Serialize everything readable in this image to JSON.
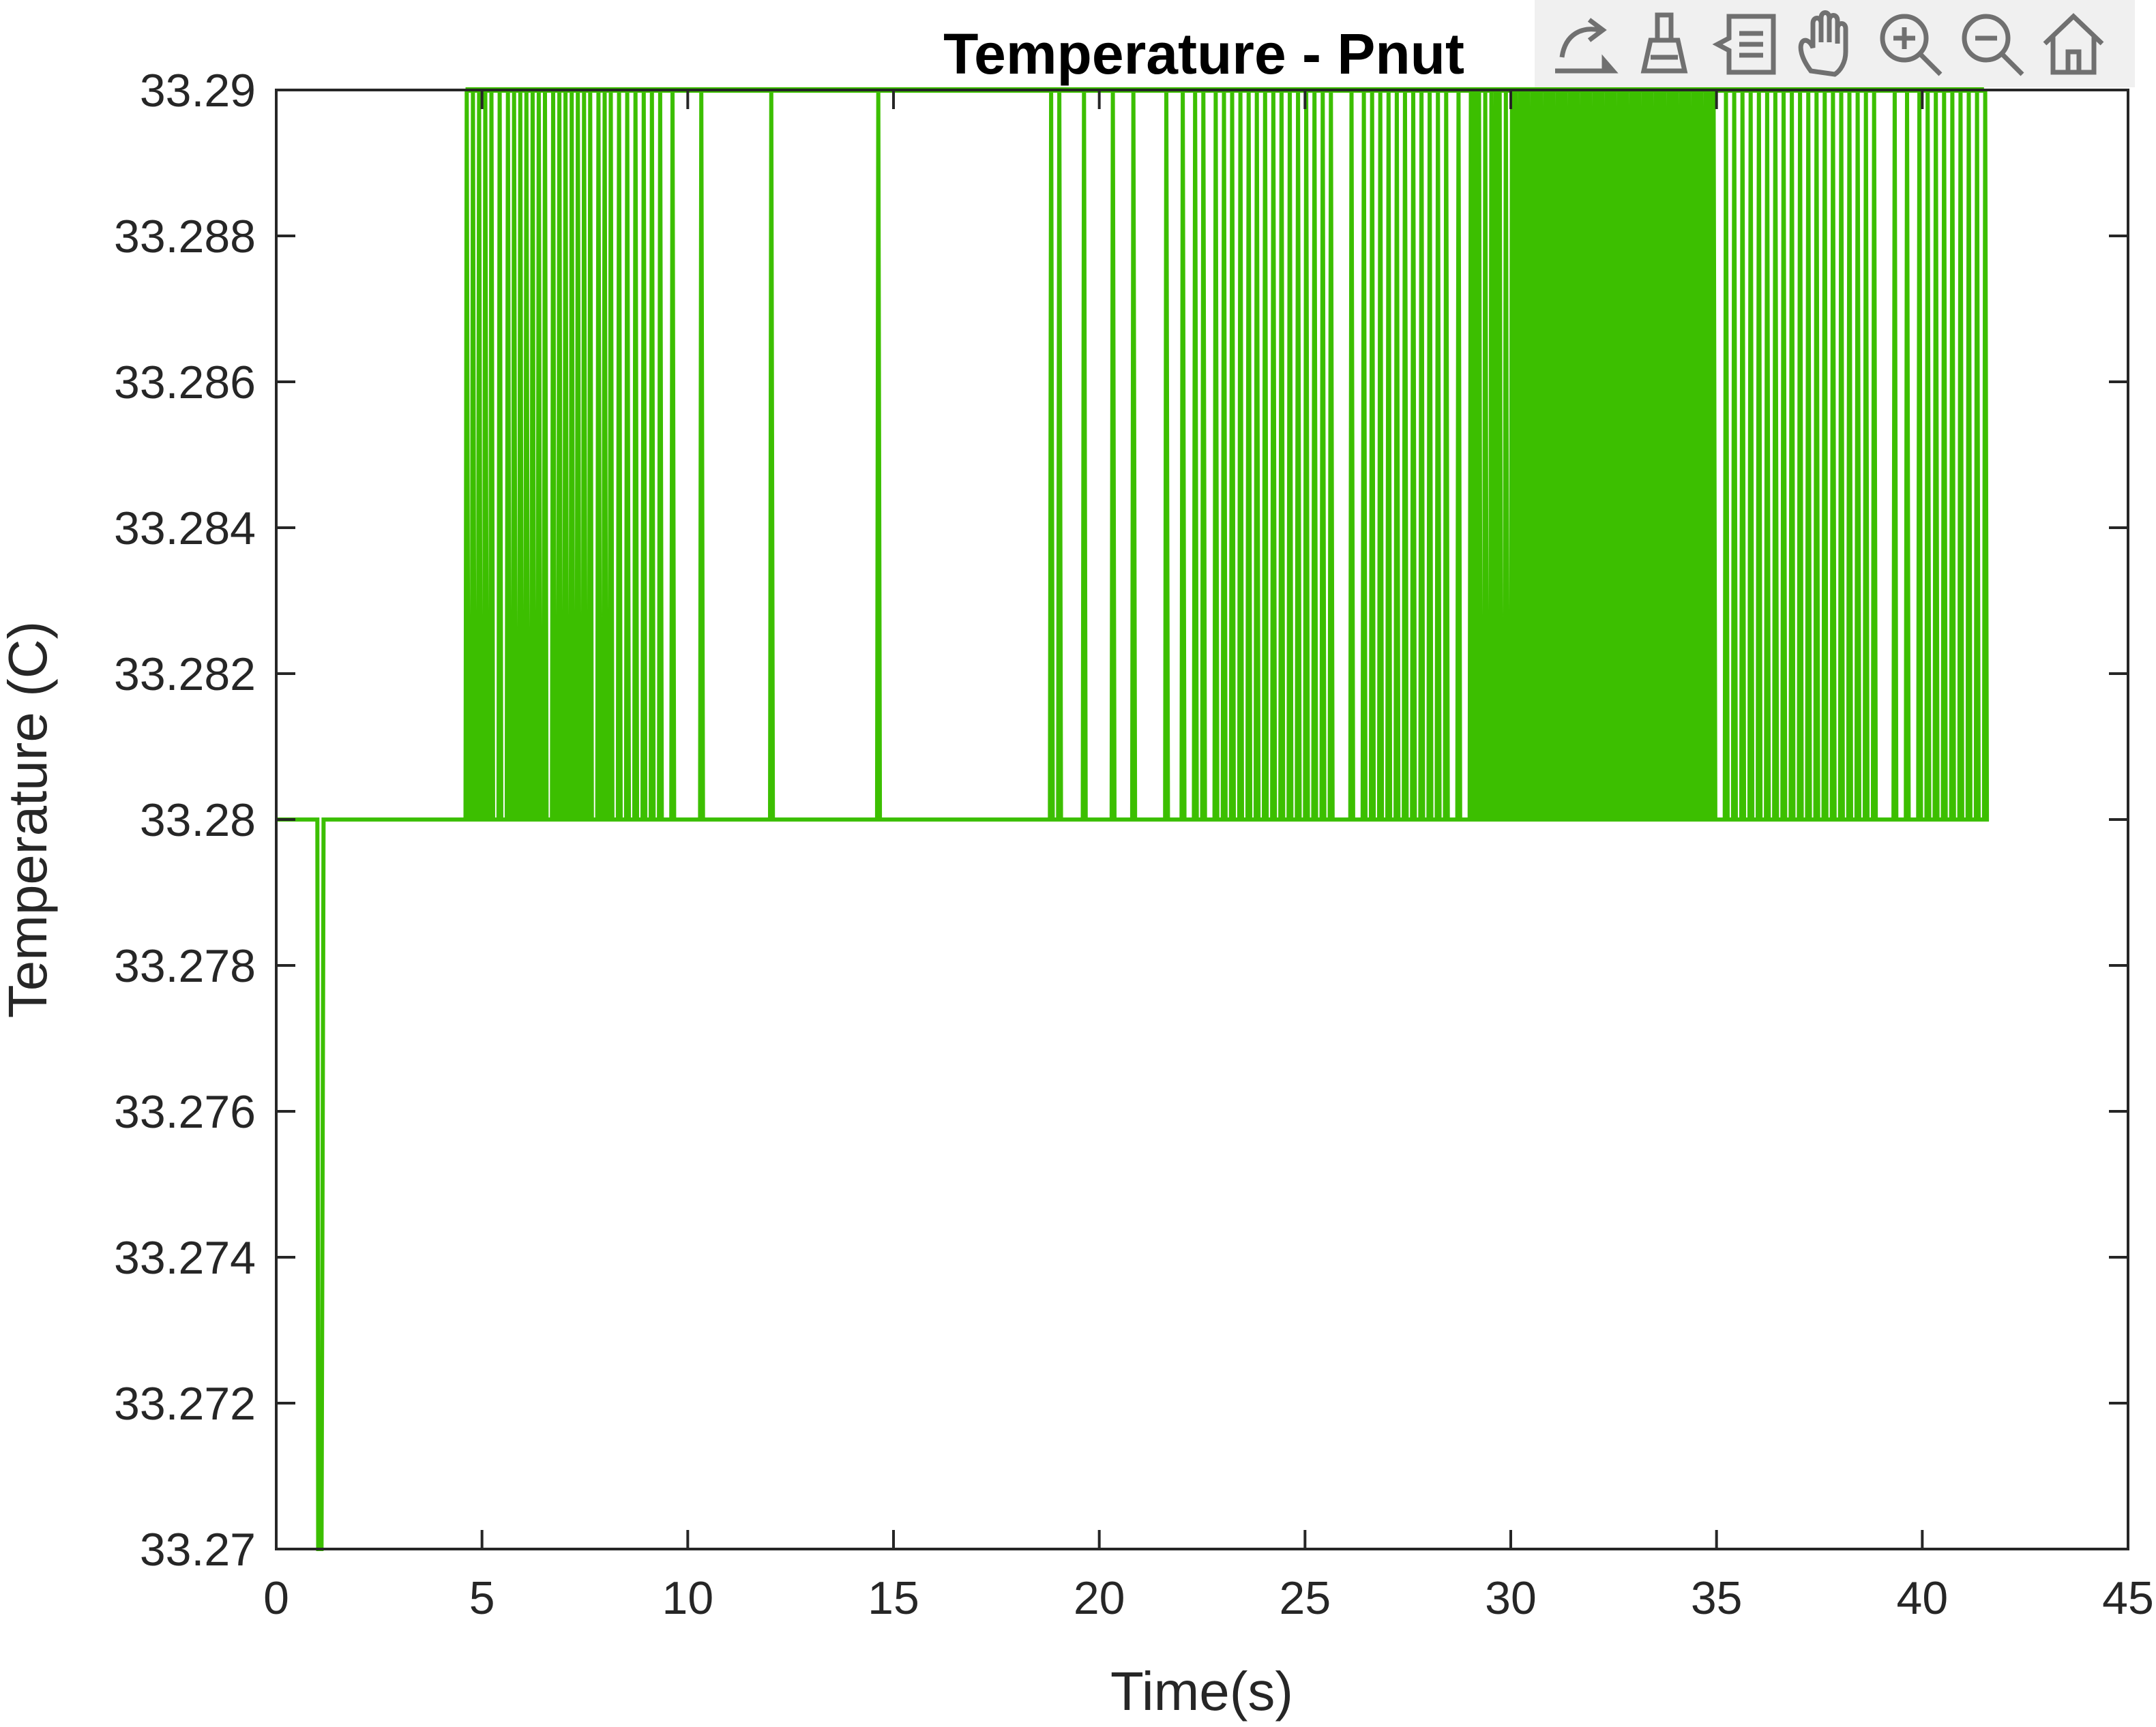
{
  "chart_data": {
    "type": "line",
    "title": "Temperature - Pnut",
    "xlabel": "Time(s)",
    "ylabel": "Temperature (C)",
    "xlim": [
      0,
      45
    ],
    "ylim": [
      33.27,
      33.29
    ],
    "xticks": [
      "0",
      "5",
      "10",
      "15",
      "20",
      "25",
      "30",
      "35",
      "40",
      "45"
    ],
    "yticks": [
      "33.27",
      "33.272",
      "33.274",
      "33.276",
      "33.278",
      "33.28",
      "33.282",
      "33.284",
      "33.286",
      "33.288",
      "33.29"
    ],
    "grid": false,
    "series": [
      {
        "color": "#3cbf00",
        "base": 33.28,
        "high": 33.29,
        "start": {
          "x": [
            0,
            1.0,
            1.02,
            1.1,
            1.15
          ],
          "y": [
            33.28,
            33.28,
            33.27,
            33.27,
            33.28
          ]
        },
        "end_x": 41.5,
        "spikes_to_high": [
          4.6,
          4.75,
          4.9,
          5.05,
          5.2,
          5.4,
          5.6,
          5.75,
          5.9,
          6.05,
          6.2,
          6.35,
          6.5,
          6.7,
          6.85,
          7.0,
          7.15,
          7.3,
          7.45,
          7.6,
          7.8,
          7.95,
          8.1,
          8.3,
          8.5,
          8.7,
          8.9,
          9.1,
          9.3,
          9.6,
          10.3,
          12.0,
          14.6,
          18.8,
          19.0,
          19.6,
          20.3,
          20.8,
          21.6,
          22.0,
          22.3,
          22.5,
          22.8,
          23.0,
          23.2,
          23.4,
          23.6,
          23.8,
          24.0,
          24.2,
          24.4,
          24.6,
          24.8,
          25.0,
          25.2,
          25.4,
          25.6,
          26.1,
          26.4,
          26.6,
          26.8,
          27.0,
          27.2,
          27.4,
          27.6,
          27.8,
          28.0,
          28.2,
          28.4,
          28.7,
          29.0,
          29.1,
          29.2,
          29.35,
          29.5,
          29.6,
          29.7,
          29.85,
          30.0,
          30.1,
          30.2,
          30.3,
          30.4,
          30.5,
          30.6,
          30.7,
          30.8,
          30.9,
          31.0,
          31.1,
          31.2,
          31.3,
          31.4,
          31.5,
          31.6,
          31.7,
          31.8,
          31.9,
          32.0,
          32.1,
          32.2,
          32.3,
          32.4,
          32.5,
          32.6,
          32.7,
          32.8,
          32.9,
          33.0,
          33.1,
          33.2,
          33.3,
          33.4,
          33.5,
          33.6,
          33.7,
          33.8,
          33.9,
          34.0,
          34.1,
          34.2,
          34.3,
          34.4,
          34.5,
          34.6,
          34.7,
          34.8,
          34.9,
          35.2,
          35.4,
          35.6,
          35.8,
          36.0,
          36.2,
          36.4,
          36.6,
          36.8,
          37.0,
          37.2,
          37.4,
          37.6,
          37.8,
          38.0,
          38.2,
          38.4,
          38.6,
          38.8,
          39.3,
          39.6,
          39.9,
          40.1,
          40.3,
          40.5,
          40.7,
          40.9,
          41.1,
          41.3,
          41.5
        ]
      }
    ]
  },
  "toolbar": {
    "buttons": [
      "export-icon",
      "brush-icon",
      "data-tips-icon",
      "pan-icon",
      "zoom-in-icon",
      "zoom-out-icon",
      "home-icon"
    ]
  }
}
